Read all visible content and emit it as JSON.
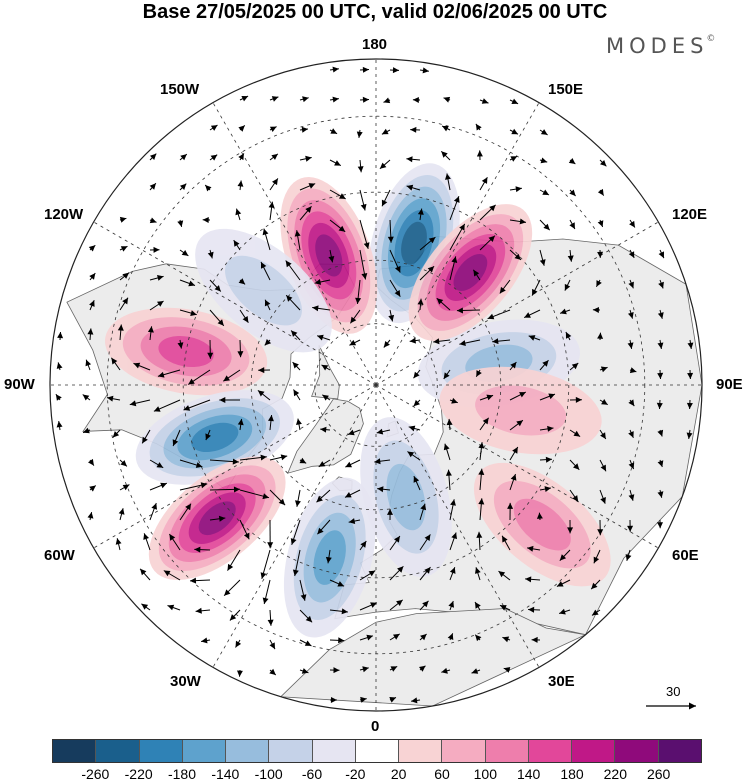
{
  "title": "Base 27/05/2025 00 UTC, valid 02/06/2025 00 UTC",
  "brand": "MODES",
  "brand_mark": "©",
  "longitude_labels": {
    "top": "180",
    "bottom": "0",
    "left": "90W",
    "right": "90E",
    "w150": "150W",
    "e150": "150E",
    "w120": "120W",
    "e120": "120E",
    "w60": "60W",
    "e60": "60E",
    "w30": "30W",
    "e30": "30E"
  },
  "reference_vector_label": "30",
  "colorbar": {
    "colors": [
      "#163b5d",
      "#1a5f8c",
      "#2f82b6",
      "#5ea2cd",
      "#97bddd",
      "#c5d2e8",
      "#e6e5f2",
      "#ffffff",
      "#f8d3d4",
      "#f5acc1",
      "#ee7eac",
      "#e2479a",
      "#c01887",
      "#8f0a7b",
      "#5a0f6f"
    ],
    "tick_labels": [
      "-260",
      "-220",
      "-180",
      "-140",
      "-100",
      "-60",
      "-20",
      "20",
      "60",
      "100",
      "140",
      "180",
      "220",
      "260"
    ]
  },
  "map": {
    "projection": "north-polar-stereographic",
    "land_fill": "#ececec",
    "ocean_fill": "#ffffff",
    "anomaly_lobes": [
      {
        "lon": 165,
        "lat": 55,
        "value": -260
      },
      {
        "lon": -160,
        "lat": 57,
        "value": 250
      },
      {
        "lon": -130,
        "lat": 55,
        "value": -110
      },
      {
        "lon": -100,
        "lat": 45,
        "value": 180
      },
      {
        "lon": -72,
        "lat": 50,
        "value": -230
      },
      {
        "lon": -50,
        "lat": 42,
        "value": 240
      },
      {
        "lon": -15,
        "lat": 48,
        "value": -170
      },
      {
        "lon": 15,
        "lat": 62,
        "value": -120
      },
      {
        "lon": 50,
        "lat": 40,
        "value": 130
      },
      {
        "lon": 100,
        "lat": 60,
        "value": -150
      },
      {
        "lon": 140,
        "lat": 55,
        "value": 250
      },
      {
        "lon": 80,
        "lat": 55,
        "value": 90
      }
    ]
  }
}
